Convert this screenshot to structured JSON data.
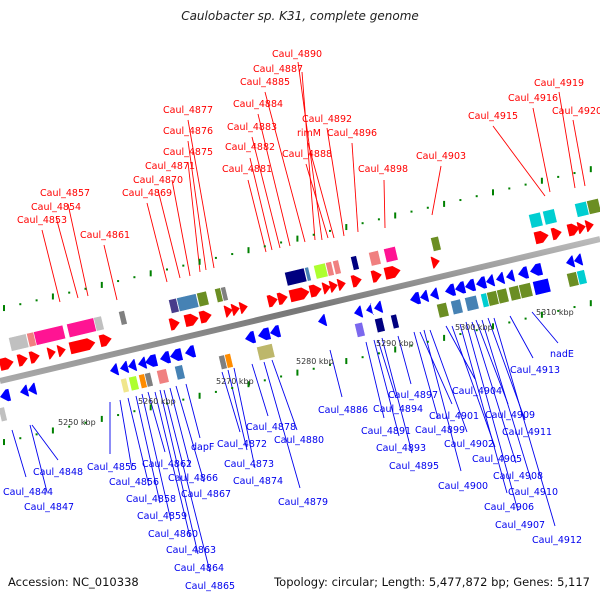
{
  "title": "Caulobacter sp. K31, complete genome",
  "footer": {
    "accession": "Accession: NC_010338",
    "summary": "Topology: circular; Length: 5,477,872 bp; Genes: 5,117"
  },
  "colors": {
    "forward_label": "#ff0000",
    "reverse_label": "#0000ee",
    "backbone": "#8a8a8a",
    "tick": "#008000",
    "forward_cds": "#ff0000",
    "reverse_cds": "#0000ff"
  },
  "axis": {
    "tick_labels": [
      "5250 kbp",
      "5260 kbp",
      "5270 kbp",
      "5280 kbp",
      "5290 kbp",
      "5300 kbp",
      "5310 kbp"
    ]
  },
  "forward_labels": [
    {
      "text": "Caul_4853",
      "gene_pos": 0.04
    },
    {
      "text": "Caul_4854",
      "gene_pos": 0.075
    },
    {
      "text": "Caul_4857",
      "gene_pos": 0.09
    },
    {
      "text": "Caul_4861",
      "gene_pos": 0.14
    },
    {
      "text": "Caul_4869",
      "gene_pos": 0.26
    },
    {
      "text": "Caul_4870",
      "gene_pos": 0.27
    },
    {
      "text": "Caul_4871",
      "gene_pos": 0.29
    },
    {
      "text": "Caul_4875",
      "gene_pos": 0.305
    },
    {
      "text": "Caul_4876",
      "gene_pos": 0.32
    },
    {
      "text": "Caul_4877",
      "gene_pos": 0.33
    },
    {
      "text": "Caul_4881",
      "gene_pos": 0.42
    },
    {
      "text": "Caul_4882",
      "gene_pos": 0.435
    },
    {
      "text": "Caul_4883",
      "gene_pos": 0.45
    },
    {
      "text": "Caul_4884",
      "gene_pos": 0.475
    },
    {
      "text": "Caul_4885",
      "gene_pos": 0.5
    },
    {
      "text": "Caul_4887",
      "gene_pos": 0.51
    },
    {
      "text": "Caul_4890",
      "gene_pos": 0.52
    },
    {
      "text": "Caul_4888",
      "gene_pos": 0.53
    },
    {
      "text": "rimM",
      "gene_pos": 0.54
    },
    {
      "text": "Caul_4892",
      "gene_pos": 0.55
    },
    {
      "text": "Caul_4896",
      "gene_pos": 0.59
    },
    {
      "text": "Caul_4898",
      "gene_pos": 0.62
    },
    {
      "text": "Caul_4903",
      "gene_pos": 0.7
    },
    {
      "text": "Caul_4915",
      "gene_pos": 0.88
    },
    {
      "text": "Caul_4916",
      "gene_pos": 0.9
    },
    {
      "text": "Caul_4919",
      "gene_pos": 0.945
    },
    {
      "text": "Caul_4920",
      "gene_pos": 0.96
    }
  ],
  "reverse_labels": [
    {
      "text": "Caul_4844"
    },
    {
      "text": "Caul_4847"
    },
    {
      "text": "Caul_4848"
    },
    {
      "text": "Caul_4855"
    },
    {
      "text": "Caul_4856"
    },
    {
      "text": "Caul_4858"
    },
    {
      "text": "Caul_4859"
    },
    {
      "text": "Caul_4860"
    },
    {
      "text": "Caul_4862"
    },
    {
      "text": "Caul_4863"
    },
    {
      "text": "Caul_4864"
    },
    {
      "text": "Caul_4865"
    },
    {
      "text": "Caul_4866"
    },
    {
      "text": "Caul_4867"
    },
    {
      "text": "dapF"
    },
    {
      "text": "Caul_4872"
    },
    {
      "text": "Caul_4873"
    },
    {
      "text": "Caul_4874"
    },
    {
      "text": "Caul_4878"
    },
    {
      "text": "Caul_4879"
    },
    {
      "text": "Caul_4880"
    },
    {
      "text": "Caul_4886"
    },
    {
      "text": "Caul_4891"
    },
    {
      "text": "Caul_4893"
    },
    {
      "text": "Caul_4894"
    },
    {
      "text": "Caul_4895"
    },
    {
      "text": "Caul_4897"
    },
    {
      "text": "Caul_4899"
    },
    {
      "text": "Caul_4900"
    },
    {
      "text": "Caul_4901"
    },
    {
      "text": "Caul_4902"
    },
    {
      "text": "Caul_4904"
    },
    {
      "text": "Caul_4905"
    },
    {
      "text": "Caul_4906"
    },
    {
      "text": "Caul_4907"
    },
    {
      "text": "Caul_4908"
    },
    {
      "text": "Caul_4909"
    },
    {
      "text": "Caul_4910"
    },
    {
      "text": "Caul_4911"
    },
    {
      "text": "Caul_4912"
    },
    {
      "text": "Caul_4913"
    },
    {
      "text": "nadE"
    }
  ],
  "cog_colors": [
    "#ff1493",
    "#c0c0c0",
    "#f08080",
    "#6b8e23",
    "#00ced1",
    "#4682b4",
    "#483d8b",
    "#000080",
    "#adff2f",
    "#808080",
    "#ff8c00",
    "#bdb76b",
    "#7b68ee",
    "#f0e68c",
    "#0000ff"
  ]
}
